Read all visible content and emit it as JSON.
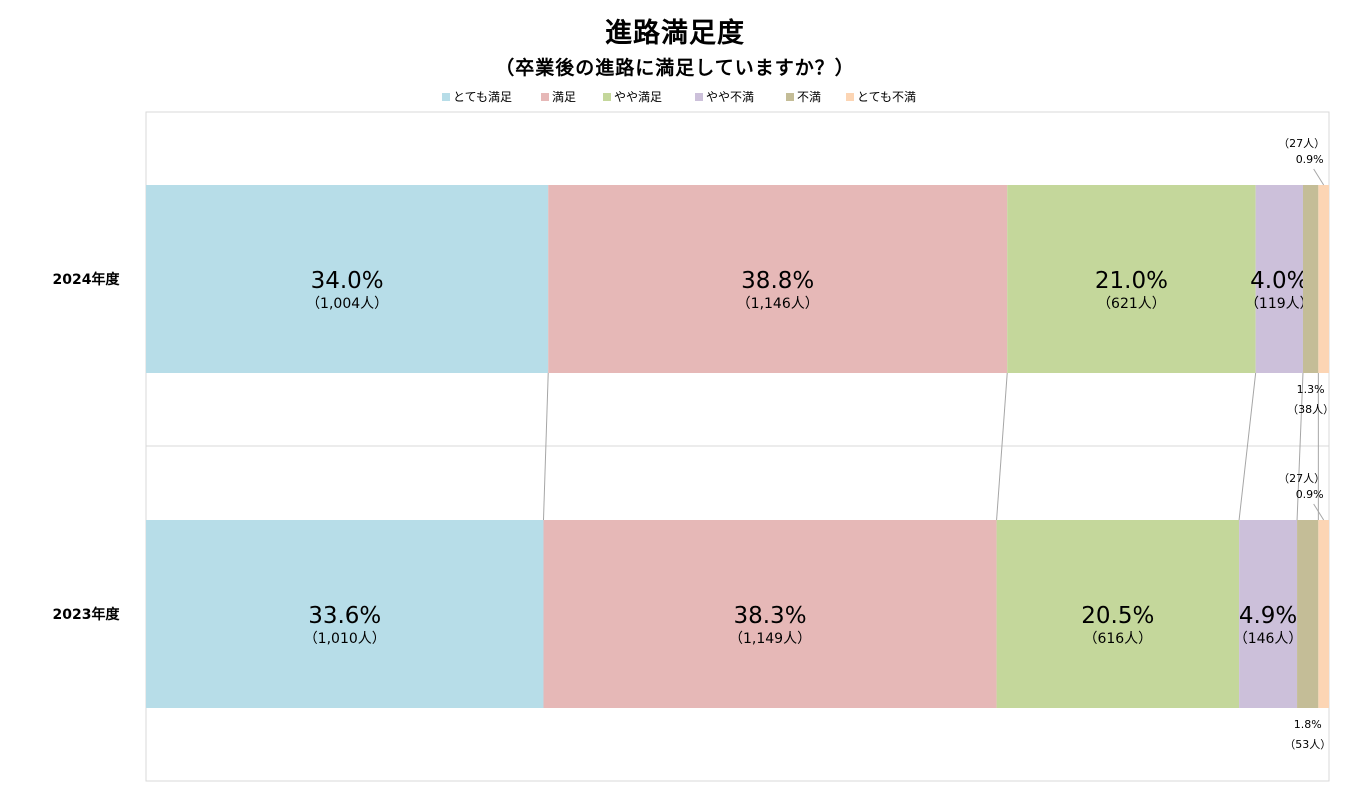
{
  "chart_data": {
    "type": "bar",
    "orientation": "horizontal-stacked-100",
    "title": "進路満足度",
    "subtitle": "（卒業後の進路に満足していますか？）",
    "legend_position": "top",
    "series": [
      {
        "name": "とても満足",
        "color": "#b7dde8"
      },
      {
        "name": "満足",
        "color": "#e6b8b7"
      },
      {
        "name": "やや満足",
        "color": "#c4d79b"
      },
      {
        "name": "やや不満",
        "color": "#ccc0da"
      },
      {
        "name": "不満",
        "color": "#c4bd97"
      },
      {
        "name": "とても不満",
        "color": "#fcd5b4"
      }
    ],
    "rows": [
      {
        "label": "2024年度",
        "values": [
          34.0,
          38.8,
          21.0,
          4.0,
          1.3,
          0.9
        ],
        "pct_labels": [
          "34.0%",
          "38.8%",
          "21.0%",
          "4.0%",
          "1.3%",
          "0.9%"
        ],
        "count_labels": [
          "（1,004人）",
          "（1,146人）",
          "（621人）",
          "（119人）",
          "（38人）",
          "（27人）"
        ]
      },
      {
        "label": "2023年度",
        "values": [
          33.6,
          38.3,
          20.5,
          4.9,
          1.8,
          0.9
        ],
        "pct_labels": [
          "33.6%",
          "38.3%",
          "20.5%",
          "4.9%",
          "1.8%",
          "0.9%"
        ],
        "count_labels": [
          "（1,010人）",
          "（1,149人）",
          "（616人）",
          "（146人）",
          "（53人）",
          "（27人）"
        ]
      }
    ],
    "xlim": [
      0,
      100
    ],
    "grid": false,
    "series_lines": true
  }
}
